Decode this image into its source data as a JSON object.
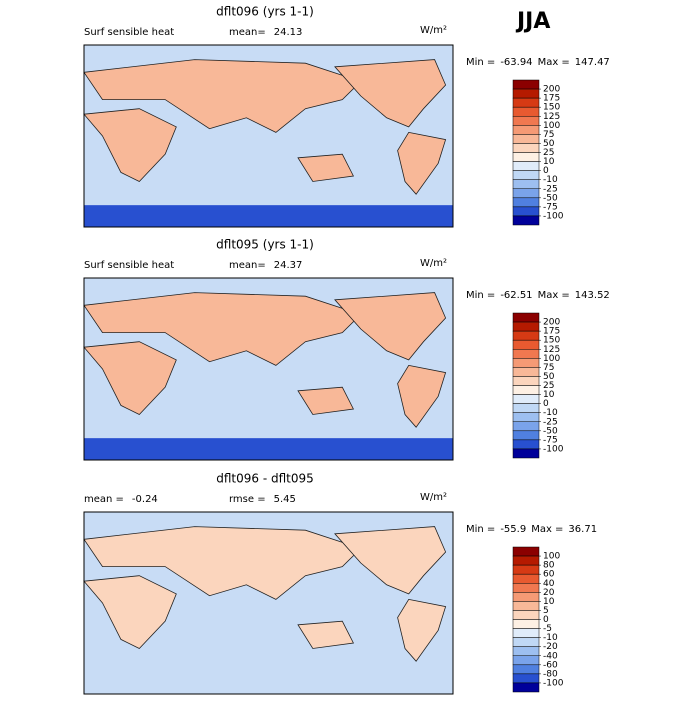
{
  "header": {
    "season": "JJA"
  },
  "colors": [
    "#8b0000",
    "#b51a00",
    "#d63a14",
    "#e85a30",
    "#f07850",
    "#f59a75",
    "#f8b898",
    "#fbd5bd",
    "#fdf0e4",
    "#e0ecfa",
    "#c0d8f5",
    "#9dbff0",
    "#7aa3ea",
    "#5080e0",
    "#2850d0",
    "#00009a"
  ],
  "panels": [
    {
      "title": "dflt096 (yrs 1-1)",
      "field": "Surf sensible heat",
      "mean_label": "mean=",
      "mean": 24.13,
      "units": "W/m²",
      "min_label": "Min =",
      "min": -63.94,
      "max_label": "Max =",
      "max": 147.47,
      "levels": [
        200,
        175,
        150,
        125,
        100,
        75,
        50,
        25,
        10,
        0,
        -10,
        -25,
        -50,
        -75,
        -100
      ]
    },
    {
      "title": "dflt095 (yrs 1-1)",
      "field": "Surf sensible heat",
      "mean_label": "mean=",
      "mean": 24.37,
      "units": "W/m²",
      "min_label": "Min =",
      "min": -62.51,
      "max_label": "Max =",
      "max": 143.52,
      "levels": [
        200,
        175,
        150,
        125,
        100,
        75,
        50,
        25,
        10,
        0,
        -10,
        -25,
        -50,
        -75,
        -100
      ]
    },
    {
      "title": "dflt096 - dflt095",
      "mean_label": "mean =",
      "mean": -0.24,
      "rmse_label": "rmse =",
      "rmse": 5.45,
      "units": "W/m²",
      "min_label": "Min =",
      "min": -55.9,
      "max_label": "Max =",
      "max": 36.71,
      "levels": [
        100,
        80,
        60,
        40,
        20,
        10,
        5,
        0,
        -5,
        -10,
        -20,
        -40,
        -60,
        -80,
        -100
      ]
    }
  ]
}
